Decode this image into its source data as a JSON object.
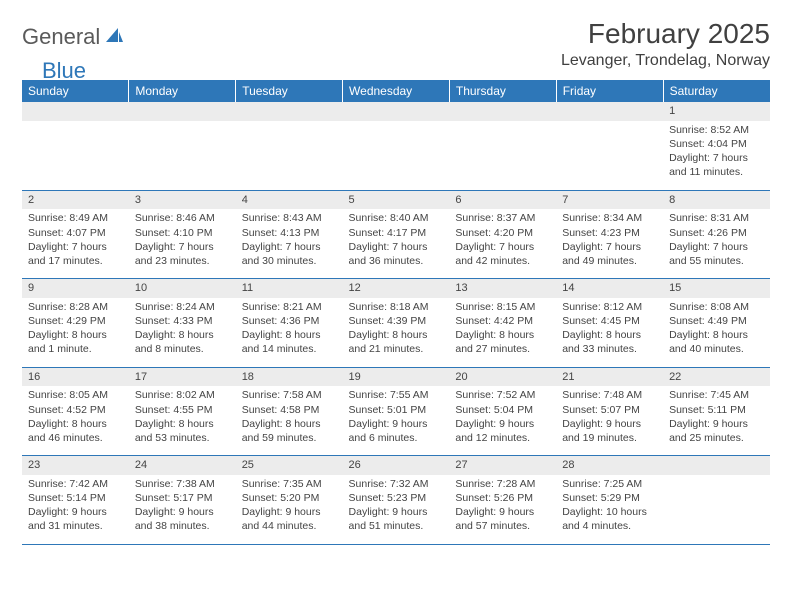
{
  "logo": {
    "word1": "General",
    "word2": "Blue"
  },
  "title": "February 2025",
  "location": "Levanger, Trondelag, Norway",
  "colors": {
    "header_bg": "#2e77b8",
    "header_fg": "#ffffff",
    "daynum_bg": "#ececec",
    "grid_line": "#2e77b8",
    "text": "#444444"
  },
  "typography": {
    "title_fontsize": 28,
    "location_fontsize": 16,
    "header_fontsize": 12,
    "cell_fontsize": 10.5
  },
  "days_header": [
    "Sunday",
    "Monday",
    "Tuesday",
    "Wednesday",
    "Thursday",
    "Friday",
    "Saturday"
  ],
  "weeks": [
    [
      null,
      null,
      null,
      null,
      null,
      null,
      {
        "n": "1",
        "sunrise": "Sunrise: 8:52 AM",
        "sunset": "Sunset: 4:04 PM",
        "daylight": "Daylight: 7 hours and 11 minutes."
      }
    ],
    [
      {
        "n": "2",
        "sunrise": "Sunrise: 8:49 AM",
        "sunset": "Sunset: 4:07 PM",
        "daylight": "Daylight: 7 hours and 17 minutes."
      },
      {
        "n": "3",
        "sunrise": "Sunrise: 8:46 AM",
        "sunset": "Sunset: 4:10 PM",
        "daylight": "Daylight: 7 hours and 23 minutes."
      },
      {
        "n": "4",
        "sunrise": "Sunrise: 8:43 AM",
        "sunset": "Sunset: 4:13 PM",
        "daylight": "Daylight: 7 hours and 30 minutes."
      },
      {
        "n": "5",
        "sunrise": "Sunrise: 8:40 AM",
        "sunset": "Sunset: 4:17 PM",
        "daylight": "Daylight: 7 hours and 36 minutes."
      },
      {
        "n": "6",
        "sunrise": "Sunrise: 8:37 AM",
        "sunset": "Sunset: 4:20 PM",
        "daylight": "Daylight: 7 hours and 42 minutes."
      },
      {
        "n": "7",
        "sunrise": "Sunrise: 8:34 AM",
        "sunset": "Sunset: 4:23 PM",
        "daylight": "Daylight: 7 hours and 49 minutes."
      },
      {
        "n": "8",
        "sunrise": "Sunrise: 8:31 AM",
        "sunset": "Sunset: 4:26 PM",
        "daylight": "Daylight: 7 hours and 55 minutes."
      }
    ],
    [
      {
        "n": "9",
        "sunrise": "Sunrise: 8:28 AM",
        "sunset": "Sunset: 4:29 PM",
        "daylight": "Daylight: 8 hours and 1 minute."
      },
      {
        "n": "10",
        "sunrise": "Sunrise: 8:24 AM",
        "sunset": "Sunset: 4:33 PM",
        "daylight": "Daylight: 8 hours and 8 minutes."
      },
      {
        "n": "11",
        "sunrise": "Sunrise: 8:21 AM",
        "sunset": "Sunset: 4:36 PM",
        "daylight": "Daylight: 8 hours and 14 minutes."
      },
      {
        "n": "12",
        "sunrise": "Sunrise: 8:18 AM",
        "sunset": "Sunset: 4:39 PM",
        "daylight": "Daylight: 8 hours and 21 minutes."
      },
      {
        "n": "13",
        "sunrise": "Sunrise: 8:15 AM",
        "sunset": "Sunset: 4:42 PM",
        "daylight": "Daylight: 8 hours and 27 minutes."
      },
      {
        "n": "14",
        "sunrise": "Sunrise: 8:12 AM",
        "sunset": "Sunset: 4:45 PM",
        "daylight": "Daylight: 8 hours and 33 minutes."
      },
      {
        "n": "15",
        "sunrise": "Sunrise: 8:08 AM",
        "sunset": "Sunset: 4:49 PM",
        "daylight": "Daylight: 8 hours and 40 minutes."
      }
    ],
    [
      {
        "n": "16",
        "sunrise": "Sunrise: 8:05 AM",
        "sunset": "Sunset: 4:52 PM",
        "daylight": "Daylight: 8 hours and 46 minutes."
      },
      {
        "n": "17",
        "sunrise": "Sunrise: 8:02 AM",
        "sunset": "Sunset: 4:55 PM",
        "daylight": "Daylight: 8 hours and 53 minutes."
      },
      {
        "n": "18",
        "sunrise": "Sunrise: 7:58 AM",
        "sunset": "Sunset: 4:58 PM",
        "daylight": "Daylight: 8 hours and 59 minutes."
      },
      {
        "n": "19",
        "sunrise": "Sunrise: 7:55 AM",
        "sunset": "Sunset: 5:01 PM",
        "daylight": "Daylight: 9 hours and 6 minutes."
      },
      {
        "n": "20",
        "sunrise": "Sunrise: 7:52 AM",
        "sunset": "Sunset: 5:04 PM",
        "daylight": "Daylight: 9 hours and 12 minutes."
      },
      {
        "n": "21",
        "sunrise": "Sunrise: 7:48 AM",
        "sunset": "Sunset: 5:07 PM",
        "daylight": "Daylight: 9 hours and 19 minutes."
      },
      {
        "n": "22",
        "sunrise": "Sunrise: 7:45 AM",
        "sunset": "Sunset: 5:11 PM",
        "daylight": "Daylight: 9 hours and 25 minutes."
      }
    ],
    [
      {
        "n": "23",
        "sunrise": "Sunrise: 7:42 AM",
        "sunset": "Sunset: 5:14 PM",
        "daylight": "Daylight: 9 hours and 31 minutes."
      },
      {
        "n": "24",
        "sunrise": "Sunrise: 7:38 AM",
        "sunset": "Sunset: 5:17 PM",
        "daylight": "Daylight: 9 hours and 38 minutes."
      },
      {
        "n": "25",
        "sunrise": "Sunrise: 7:35 AM",
        "sunset": "Sunset: 5:20 PM",
        "daylight": "Daylight: 9 hours and 44 minutes."
      },
      {
        "n": "26",
        "sunrise": "Sunrise: 7:32 AM",
        "sunset": "Sunset: 5:23 PM",
        "daylight": "Daylight: 9 hours and 51 minutes."
      },
      {
        "n": "27",
        "sunrise": "Sunrise: 7:28 AM",
        "sunset": "Sunset: 5:26 PM",
        "daylight": "Daylight: 9 hours and 57 minutes."
      },
      {
        "n": "28",
        "sunrise": "Sunrise: 7:25 AM",
        "sunset": "Sunset: 5:29 PM",
        "daylight": "Daylight: 10 hours and 4 minutes."
      },
      null
    ]
  ]
}
